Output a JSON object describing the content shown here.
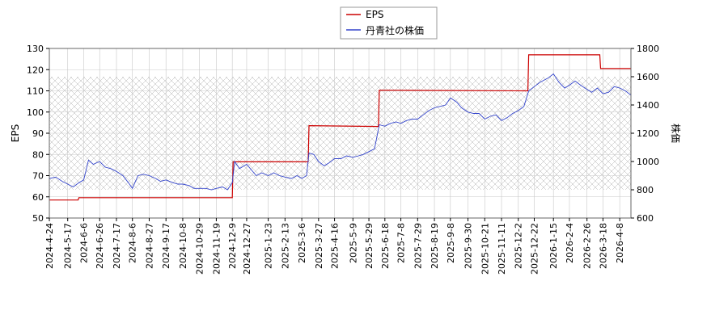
{
  "chart_data": {
    "type": "line",
    "legend": {
      "placement": "top-center",
      "entries": [
        "EPS",
        "丹青社の株価"
      ]
    },
    "left_axis": {
      "label": "EPS",
      "ylim": [
        50,
        130
      ],
      "ticks": [
        "50",
        "60",
        "70",
        "80",
        "90",
        "100",
        "110",
        "120",
        "130"
      ]
    },
    "right_axis": {
      "label": "株価",
      "ylim": [
        600,
        1800
      ],
      "ticks": [
        "600",
        "800",
        "1000",
        "1200",
        "1400",
        "1600",
        "1800"
      ]
    },
    "x_ticks": [
      "2024-4-24",
      "2024-5-17",
      "2024-6-6",
      "2024-6-26",
      "2024-7-17",
      "2024-8-6",
      "2024-8-27",
      "2024-9-17",
      "2024-10-8",
      "2024-10-29",
      "2024-11-19",
      "2024-12-9",
      "2024-12-27",
      "2025-1-23",
      "2025-2-13",
      "2025-3-6",
      "2025-3-27",
      "2025-4-16",
      "2025-5-9",
      "2025-5-29",
      "2025-6-18",
      "2025-7-8",
      "2025-7-29",
      "2025-8-19",
      "2025-9-8",
      "2025-9-30",
      "2025-10-21",
      "2025-11-11",
      "2025-12-2",
      "2025-12-22",
      "2026-1-15",
      "2026-2-4",
      "2026-2-26",
      "2026-3-18",
      "2026-4-8"
    ],
    "grid": true,
    "colors": {
      "eps": "#cc0000",
      "price": "#3344cc"
    },
    "series": [
      {
        "name": "EPS",
        "axis": "left",
        "x": [
          "2024-4-24",
          "2024-5-30",
          "2024-5-31",
          "2024-12-9",
          "2024-12-10",
          "2025-2-13",
          "2025-3-14",
          "2025-3-15",
          "2025-6-10",
          "2025-6-11",
          "2025-12-14",
          "2025-12-15",
          "2026-3-14",
          "2026-3-15",
          "2026-4-22"
        ],
        "values": [
          58.5,
          58.5,
          59.6,
          59.6,
          76.5,
          76.5,
          76.5,
          93.6,
          93.2,
          110.3,
          110.0,
          127.0,
          127.0,
          120.5,
          120.5
        ]
      },
      {
        "name": "丹青社の株価",
        "axis": "right",
        "x": [
          "2024-4-24",
          "2024-5-2",
          "2024-5-10",
          "2024-5-17",
          "2024-5-24",
          "2024-5-31",
          "2024-6-6",
          "2024-6-12",
          "2024-6-18",
          "2024-6-26",
          "2024-7-3",
          "2024-7-10",
          "2024-7-17",
          "2024-7-25",
          "2024-8-1",
          "2024-8-6",
          "2024-8-13",
          "2024-8-20",
          "2024-8-27",
          "2024-9-4",
          "2024-9-10",
          "2024-9-17",
          "2024-9-26",
          "2024-10-2",
          "2024-10-8",
          "2024-10-16",
          "2024-10-22",
          "2024-10-29",
          "2024-11-6",
          "2024-11-13",
          "2024-11-19",
          "2024-11-27",
          "2024-12-3",
          "2024-12-9",
          "2024-12-12",
          "2024-12-18",
          "2024-12-27",
          "2025-1-8",
          "2025-1-15",
          "2025-1-23",
          "2025-1-30",
          "2025-2-6",
          "2025-2-13",
          "2025-2-21",
          "2025-2-28",
          "2025-3-6",
          "2025-3-12",
          "2025-3-15",
          "2025-3-21",
          "2025-3-27",
          "2025-4-3",
          "2025-4-9",
          "2025-4-16",
          "2025-4-24",
          "2025-5-1",
          "2025-5-9",
          "2025-5-16",
          "2025-5-22",
          "2025-5-29",
          "2025-6-5",
          "2025-6-11",
          "2025-6-18",
          "2025-6-25",
          "2025-7-2",
          "2025-7-8",
          "2025-7-15",
          "2025-7-22",
          "2025-7-29",
          "2025-8-5",
          "2025-8-12",
          "2025-8-19",
          "2025-8-26",
          "2025-9-2",
          "2025-9-8",
          "2025-9-16",
          "2025-9-22",
          "2025-9-30",
          "2025-10-7",
          "2025-10-14",
          "2025-10-21",
          "2025-10-28",
          "2025-11-4",
          "2025-11-11",
          "2025-11-18",
          "2025-11-25",
          "2025-12-2",
          "2025-12-9",
          "2025-12-15",
          "2025-12-22",
          "2025-12-29",
          "2026-1-8",
          "2026-1-15",
          "2026-1-22",
          "2026-1-29",
          "2026-2-4",
          "2026-2-11",
          "2026-2-18",
          "2026-2-26",
          "2026-3-4",
          "2026-3-11",
          "2026-3-18",
          "2026-3-25",
          "2026-4-1",
          "2026-4-8",
          "2026-4-15",
          "2026-4-22"
        ],
        "values": [
          880,
          890,
          860,
          840,
          820,
          850,
          870,
          1010,
          980,
          1000,
          960,
          950,
          930,
          900,
          850,
          810,
          900,
          910,
          900,
          880,
          860,
          870,
          850,
          840,
          840,
          830,
          810,
          810,
          810,
          800,
          810,
          820,
          800,
          850,
          1000,
          950,
          980,
          900,
          920,
          900,
          920,
          900,
          890,
          880,
          900,
          880,
          900,
          1060,
          1050,
          1000,
          970,
          990,
          1020,
          1020,
          1040,
          1030,
          1040,
          1050,
          1070,
          1090,
          1260,
          1250,
          1270,
          1280,
          1270,
          1290,
          1300,
          1300,
          1330,
          1360,
          1380,
          1390,
          1400,
          1450,
          1420,
          1380,
          1350,
          1340,
          1340,
          1300,
          1320,
          1330,
          1290,
          1310,
          1340,
          1360,
          1390,
          1500,
          1530,
          1560,
          1590,
          1620,
          1560,
          1520,
          1540,
          1570,
          1540,
          1510,
          1490,
          1520,
          1480,
          1490,
          1530,
          1520,
          1500,
          1470
        ]
      }
    ]
  }
}
